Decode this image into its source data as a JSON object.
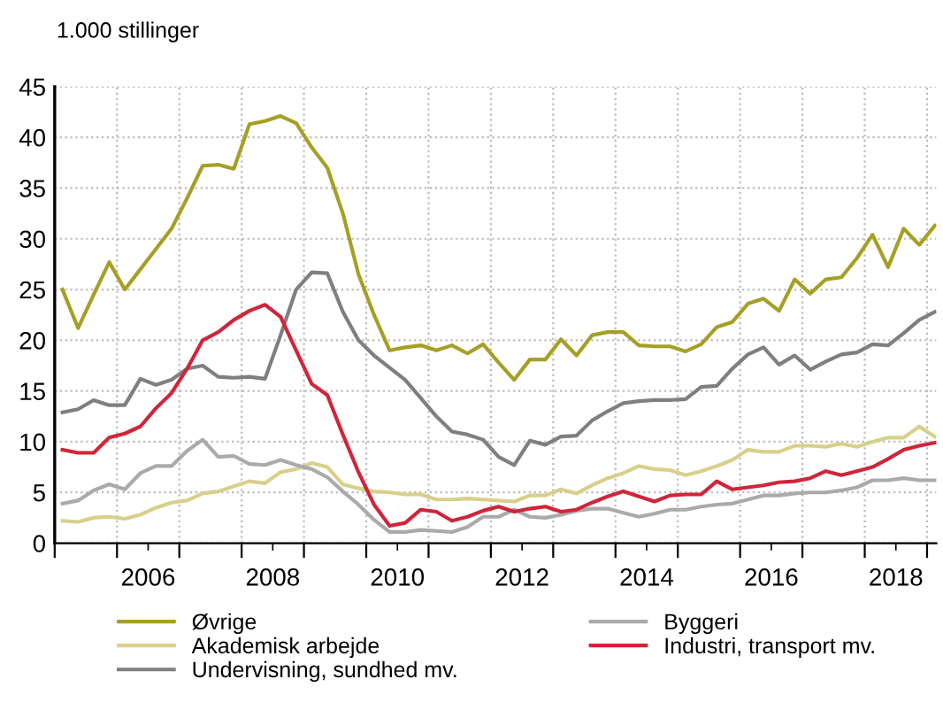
{
  "chart_data": {
    "type": "line",
    "ylabel": "1.000 stillinger",
    "x": [
      2005.125,
      2005.375,
      2005.625,
      2005.875,
      2006.125,
      2006.375,
      2006.625,
      2006.875,
      2007.125,
      2007.375,
      2007.625,
      2007.875,
      2008.125,
      2008.375,
      2008.625,
      2008.875,
      2009.125,
      2009.375,
      2009.625,
      2009.875,
      2010.125,
      2010.375,
      2010.625,
      2010.875,
      2011.125,
      2011.375,
      2011.625,
      2011.875,
      2012.125,
      2012.375,
      2012.625,
      2012.875,
      2013.125,
      2013.375,
      2013.625,
      2013.875,
      2014.125,
      2014.375,
      2014.625,
      2014.875,
      2015.125,
      2015.375,
      2015.625,
      2015.875,
      2016.125,
      2016.375,
      2016.625,
      2016.875,
      2017.125,
      2017.375,
      2017.625,
      2017.875,
      2018.125,
      2018.375,
      2018.625,
      2018.875,
      2019.125
    ],
    "xlim": [
      2005,
      2019.15
    ],
    "ylim": [
      0,
      45
    ],
    "xticks": [
      {
        "value": 2005,
        "label": null
      },
      {
        "value": 2006,
        "label": null
      },
      {
        "value": 2007,
        "label": null
      },
      {
        "value": 2008,
        "label": null
      },
      {
        "value": 2009,
        "label": null
      },
      {
        "value": 2010,
        "label": null
      },
      {
        "value": 2011,
        "label": null
      },
      {
        "value": 2012,
        "label": null
      },
      {
        "value": 2013,
        "label": null
      },
      {
        "value": 2014,
        "label": null
      },
      {
        "value": 2015,
        "label": null
      },
      {
        "value": 2016,
        "label": null
      },
      {
        "value": 2017,
        "label": null
      },
      {
        "value": 2018,
        "label": null
      },
      {
        "value": 2019,
        "label": null
      },
      {
        "value": 2006.5,
        "label": "2006"
      },
      {
        "value": 2008.5,
        "label": "2008"
      },
      {
        "value": 2010.5,
        "label": "2010"
      },
      {
        "value": 2012.5,
        "label": "2012"
      },
      {
        "value": 2014.5,
        "label": "2014"
      },
      {
        "value": 2016.5,
        "label": "2016"
      },
      {
        "value": 2018.5,
        "label": "2018"
      }
    ],
    "yticks": [
      0,
      5,
      10,
      15,
      20,
      25,
      30,
      35,
      40,
      45
    ],
    "grid": true,
    "legend": "bottom",
    "line_style": "solid",
    "marker": "none",
    "series": [
      {
        "name": "Øvrige",
        "color": "#a5a025",
        "values": [
          25,
          21.2,
          24.5,
          27.7,
          25,
          27,
          29,
          31,
          34,
          37.2,
          37.3,
          36.9,
          41.3,
          41.6,
          42.1,
          41.4,
          39,
          37,
          32.5,
          26.5,
          22.5,
          19,
          19.3,
          19.5,
          19,
          19.5,
          18.7,
          19.6,
          17.8,
          16.1,
          18.1,
          18.1,
          20.1,
          18.5,
          20.5,
          20.8,
          20.8,
          19.5,
          19.4,
          19.4,
          18.9,
          19.6,
          21.3,
          21.8,
          23.6,
          24.1,
          22.9,
          26,
          24.6,
          26,
          26.2,
          28.1,
          30.4,
          27.2,
          31,
          29.4,
          31.3
        ]
      },
      {
        "name": "Akademisk arbejde",
        "color": "#d8d08a",
        "values": [
          2.2,
          2.1,
          2.5,
          2.6,
          2.4,
          2.8,
          3.5,
          4,
          4.2,
          4.9,
          5.1,
          5.6,
          6.1,
          5.9,
          7,
          7.3,
          7.9,
          7.5,
          5.8,
          5.4,
          5.1,
          5,
          4.8,
          4.8,
          4.3,
          4.3,
          4.4,
          4.3,
          4.2,
          4.1,
          4.7,
          4.7,
          5.3,
          4.9,
          5.7,
          6.4,
          6.9,
          7.6,
          7.3,
          7.2,
          6.7,
          7.1,
          7.6,
          8.2,
          9.2,
          9,
          9,
          9.6,
          9.6,
          9.5,
          9.8,
          9.5,
          10,
          10.4,
          10.4,
          11.5,
          10.5
        ]
      },
      {
        "name": "Undervisning, sundhed mv.",
        "color": "#7f7f7f",
        "values": [
          12.9,
          13.2,
          14.1,
          13.6,
          13.6,
          16.2,
          15.6,
          16.1,
          17.2,
          17.5,
          16.4,
          16.3,
          16.4,
          16.2,
          20.5,
          25,
          26.7,
          26.6,
          22.8,
          20,
          18.5,
          17.3,
          16.1,
          14.3,
          12.5,
          11,
          10.7,
          10.2,
          8.5,
          7.7,
          10.1,
          9.7,
          10.5,
          10.6,
          12.1,
          13,
          13.8,
          14,
          14.1,
          14.1,
          14.2,
          15.4,
          15.5,
          17.2,
          18.6,
          19.3,
          17.6,
          18.5,
          17.1,
          17.9,
          18.6,
          18.8,
          19.6,
          19.5,
          20.7,
          22,
          22.8
        ]
      },
      {
        "name": "Byggeri",
        "color": "#aaaaaa",
        "values": [
          3.9,
          4.2,
          5.2,
          5.8,
          5.3,
          6.9,
          7.6,
          7.6,
          9.1,
          10.2,
          8.5,
          8.6,
          7.8,
          7.7,
          8.2,
          7.7,
          7.3,
          6.5,
          5.1,
          3.8,
          2.3,
          1.1,
          1.1,
          1.3,
          1.2,
          1.1,
          1.6,
          2.6,
          2.6,
          3.3,
          2.6,
          2.5,
          2.8,
          3.2,
          3.4,
          3.4,
          3,
          2.6,
          2.9,
          3.3,
          3.3,
          3.6,
          3.8,
          3.9,
          4.3,
          4.7,
          4.7,
          4.9,
          5,
          5,
          5.2,
          5.5,
          6.2,
          6.2,
          6.4,
          6.2,
          6.2
        ]
      },
      {
        "name": "Industri, transport mv.",
        "color": "#d0253a",
        "values": [
          9.2,
          8.9,
          8.9,
          10.4,
          10.8,
          11.5,
          13.3,
          14.8,
          17.2,
          20,
          20.8,
          22,
          22.9,
          23.5,
          22.3,
          19,
          15.7,
          14.6,
          10.7,
          7,
          3.8,
          1.7,
          2,
          3.3,
          3.1,
          2.2,
          2.6,
          3.2,
          3.6,
          3.1,
          3.4,
          3.6,
          3.1,
          3.3,
          4,
          4.6,
          5.1,
          4.6,
          4.1,
          4.7,
          4.8,
          4.8,
          6.1,
          5.3,
          5.5,
          5.7,
          6,
          6.1,
          6.4,
          7.1,
          6.7,
          7.1,
          7.5,
          8.3,
          9.2,
          9.6,
          9.9
        ]
      }
    ]
  }
}
